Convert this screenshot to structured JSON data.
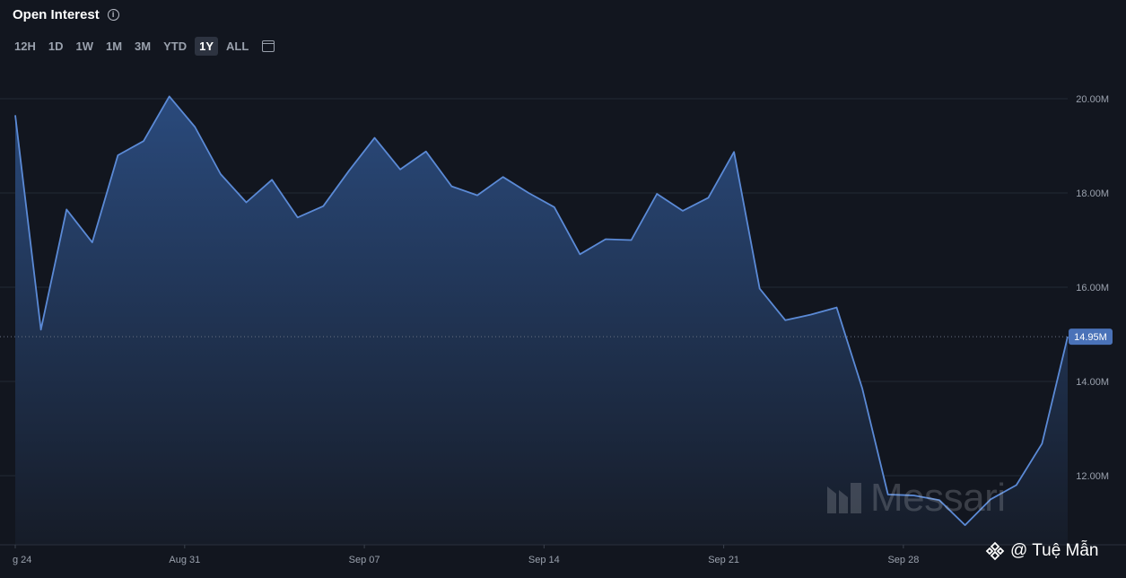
{
  "header": {
    "title": "Open Interest",
    "info_icon": "info-icon"
  },
  "ranges": [
    {
      "label": "12H",
      "active": false
    },
    {
      "label": "1D",
      "active": false
    },
    {
      "label": "1W",
      "active": false
    },
    {
      "label": "1M",
      "active": false
    },
    {
      "label": "3M",
      "active": false
    },
    {
      "label": "YTD",
      "active": false
    },
    {
      "label": "1Y",
      "active": true
    },
    {
      "label": "ALL",
      "active": false
    }
  ],
  "calendar_icon": "calendar-icon",
  "colors": {
    "background": "#12161f",
    "line": "#5b8ad6",
    "area_top": "#2a4a7c",
    "area_bottom": "#161c28",
    "grid": "#232a36",
    "badge": "#4a72b8"
  },
  "chart_data": {
    "type": "area",
    "title": "Open Interest",
    "x_tick_labels": [
      "g 24",
      "Aug 31",
      "Sep 07",
      "Sep 14",
      "Sep 21",
      "Sep 28"
    ],
    "y_tick_labels": [
      "20.00M",
      "18.00M",
      "16.00M",
      "14.00M",
      "12.00M"
    ],
    "y_ticks": [
      20,
      18,
      16,
      14,
      12
    ],
    "ylim": [
      10.5,
      20.5
    ],
    "y_unit": "M",
    "grid": true,
    "current_value": 14.95,
    "current_label": "14.95M",
    "series": [
      {
        "values": [
          19.65,
          15.1,
          17.65,
          16.95,
          18.8,
          19.1,
          20.05,
          19.4,
          18.4,
          17.8,
          18.28,
          17.48,
          17.72,
          18.47,
          19.17,
          18.5,
          18.88,
          18.14,
          17.95,
          18.34,
          18.0,
          17.7,
          16.7,
          17.02,
          17.0,
          17.98,
          17.62,
          17.9,
          18.87,
          15.97,
          15.3,
          15.42,
          15.57,
          13.85,
          11.6,
          11.58,
          11.48,
          10.95,
          11.5,
          11.8,
          12.68,
          14.95
        ]
      }
    ]
  },
  "watermark": {
    "text": "Messari",
    "icon": "messari-logo"
  },
  "credit": {
    "text": "@ Tuệ Mẫn",
    "icon": "binance-logo"
  }
}
